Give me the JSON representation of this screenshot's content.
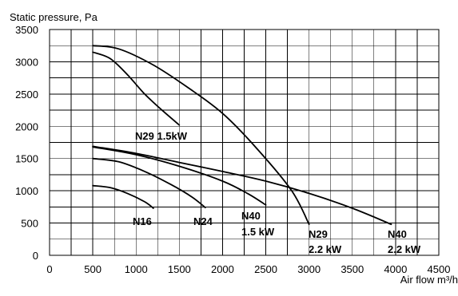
{
  "chart_data": {
    "type": "line",
    "title": "",
    "ylabel": "Static pressure, Pa",
    "xlabel": "Air flow m³/h",
    "xlim": [
      0,
      4500
    ],
    "ylim": [
      0,
      3500
    ],
    "x_ticks": [
      "0",
      "500",
      "1000",
      "1500",
      "2000",
      "2500",
      "3000",
      "3500",
      "4000",
      "4500"
    ],
    "y_ticks": [
      "0",
      "500",
      "1000",
      "1500",
      "2000",
      "2500",
      "3000",
      "3500"
    ],
    "grid": true,
    "series": [
      {
        "name": "N29 1.5kW",
        "label_lines": [
          "N29 1.5kW"
        ],
        "points": [
          [
            500,
            3150
          ],
          [
            700,
            3050
          ],
          [
            900,
            2800
          ],
          [
            1100,
            2500
          ],
          [
            1300,
            2250
          ],
          [
            1500,
            2020
          ]
        ]
      },
      {
        "name": "N29 2.2 kW",
        "label_lines": [
          "N29",
          "2.2 kW"
        ],
        "points": [
          [
            500,
            3250
          ],
          [
            800,
            3200
          ],
          [
            1200,
            2950
          ],
          [
            1600,
            2600
          ],
          [
            2000,
            2200
          ],
          [
            2400,
            1650
          ],
          [
            2800,
            1000
          ],
          [
            3000,
            480
          ]
        ]
      },
      {
        "name": "N16",
        "label_lines": [
          "N16"
        ],
        "points": [
          [
            500,
            1080
          ],
          [
            700,
            1050
          ],
          [
            900,
            960
          ],
          [
            1100,
            830
          ],
          [
            1200,
            730
          ]
        ]
      },
      {
        "name": "N24",
        "label_lines": [
          "N24"
        ],
        "points": [
          [
            500,
            1500
          ],
          [
            800,
            1450
          ],
          [
            1100,
            1300
          ],
          [
            1400,
            1100
          ],
          [
            1650,
            900
          ],
          [
            1800,
            740
          ]
        ]
      },
      {
        "name": "N40 1.5 kW",
        "label_lines": [
          "N40",
          "1.5 kW"
        ],
        "points": [
          [
            500,
            1680
          ],
          [
            1000,
            1560
          ],
          [
            1500,
            1380
          ],
          [
            2000,
            1150
          ],
          [
            2300,
            950
          ],
          [
            2500,
            780
          ]
        ]
      },
      {
        "name": "N40 2.2 kW",
        "label_lines": [
          "N40",
          "2.2 kW"
        ],
        "points": [
          [
            500,
            1690
          ],
          [
            1000,
            1580
          ],
          [
            1500,
            1440
          ],
          [
            2000,
            1300
          ],
          [
            2500,
            1150
          ],
          [
            3000,
            960
          ],
          [
            3500,
            730
          ],
          [
            3950,
            480
          ]
        ]
      }
    ]
  }
}
